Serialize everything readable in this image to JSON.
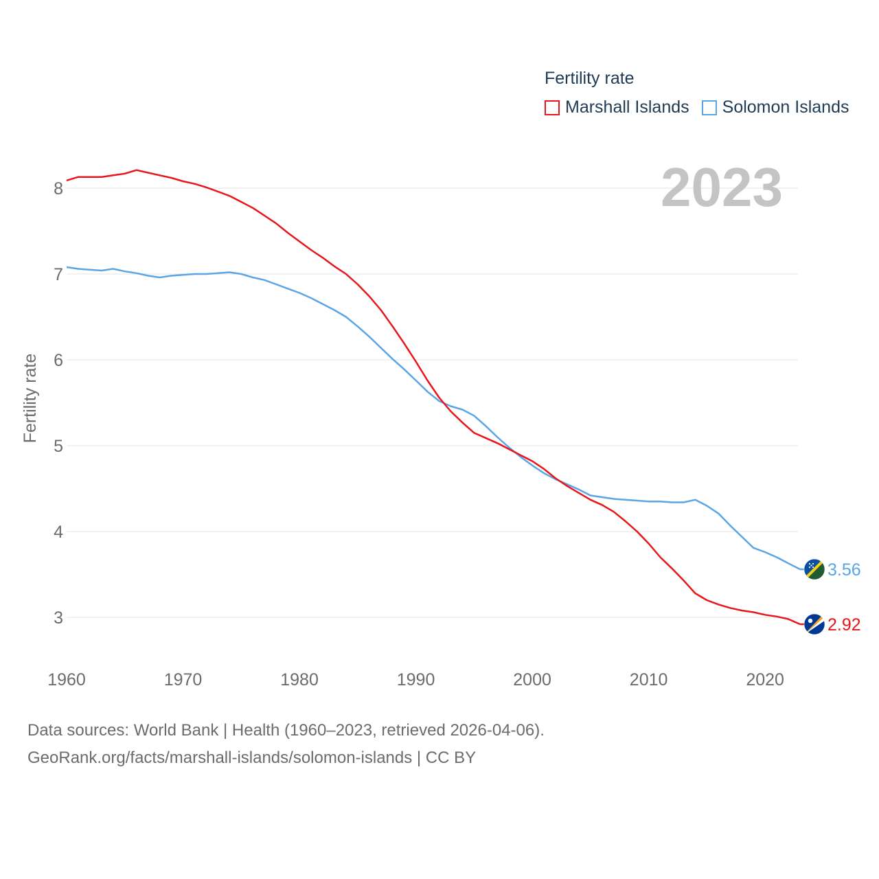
{
  "chart_data": {
    "type": "line",
    "title": "Fertility rate",
    "year_label": "2023",
    "ylabel": "Fertility rate",
    "xlabel": "",
    "xlim": [
      1960,
      2023
    ],
    "ylim": [
      2.5,
      8.6
    ],
    "y_ticks": [
      3,
      4,
      5,
      6,
      7,
      8
    ],
    "x_ticks": [
      1960,
      1970,
      1980,
      1990,
      2000,
      2010,
      2020
    ],
    "x": [
      1960,
      1961,
      1962,
      1963,
      1964,
      1965,
      1966,
      1967,
      1968,
      1969,
      1970,
      1971,
      1972,
      1973,
      1974,
      1975,
      1976,
      1977,
      1978,
      1979,
      1980,
      1981,
      1982,
      1983,
      1984,
      1985,
      1986,
      1987,
      1988,
      1989,
      1990,
      1991,
      1992,
      1993,
      1994,
      1995,
      1996,
      1997,
      1998,
      1999,
      2000,
      2001,
      2002,
      2003,
      2004,
      2005,
      2006,
      2007,
      2008,
      2009,
      2010,
      2011,
      2012,
      2013,
      2014,
      2015,
      2016,
      2017,
      2018,
      2019,
      2020,
      2021,
      2022,
      2023
    ],
    "series": [
      {
        "name": "Marshall Islands",
        "color": "#e8161a",
        "end_label": "2.92",
        "flag": "marshall-islands-flag-icon",
        "values": [
          8.09,
          8.13,
          8.13,
          8.13,
          8.15,
          8.17,
          8.21,
          8.18,
          8.15,
          8.12,
          8.08,
          8.05,
          8.01,
          7.96,
          7.91,
          7.84,
          7.77,
          7.68,
          7.59,
          7.48,
          7.38,
          7.28,
          7.19,
          7.09,
          7.0,
          6.88,
          6.74,
          6.58,
          6.39,
          6.19,
          5.98,
          5.76,
          5.56,
          5.4,
          5.27,
          5.15,
          5.09,
          5.03,
          4.96,
          4.89,
          4.82,
          4.73,
          4.62,
          4.53,
          4.45,
          4.37,
          4.31,
          4.23,
          4.12,
          4.0,
          3.86,
          3.7,
          3.57,
          3.43,
          3.28,
          3.2,
          3.15,
          3.11,
          3.08,
          3.06,
          3.03,
          3.01,
          2.98,
          2.92
        ]
      },
      {
        "name": "Solomon Islands",
        "color": "#5aa5e6",
        "end_label": "3.56",
        "flag": "solomon-islands-flag-icon",
        "values": [
          7.08,
          7.06,
          7.05,
          7.04,
          7.06,
          7.03,
          7.01,
          6.98,
          6.96,
          6.98,
          6.99,
          7.0,
          7.0,
          7.01,
          7.02,
          7.0,
          6.96,
          6.93,
          6.88,
          6.83,
          6.78,
          6.72,
          6.65,
          6.58,
          6.5,
          6.39,
          6.27,
          6.14,
          6.01,
          5.89,
          5.76,
          5.63,
          5.52,
          5.46,
          5.42,
          5.35,
          5.23,
          5.1,
          4.98,
          4.87,
          4.77,
          4.68,
          4.61,
          4.55,
          4.49,
          4.42,
          4.4,
          4.38,
          4.37,
          4.36,
          4.35,
          4.35,
          4.34,
          4.34,
          4.37,
          4.3,
          4.21,
          4.07,
          3.94,
          3.81,
          3.76,
          3.7,
          3.63,
          3.56
        ]
      }
    ]
  },
  "footer": {
    "line1": "Data sources: World Bank | Health (1960–2023, retrieved 2026-04-06).",
    "line2": "GeoRank.org/facts/marshall-islands/solomon-islands | CC BY"
  }
}
